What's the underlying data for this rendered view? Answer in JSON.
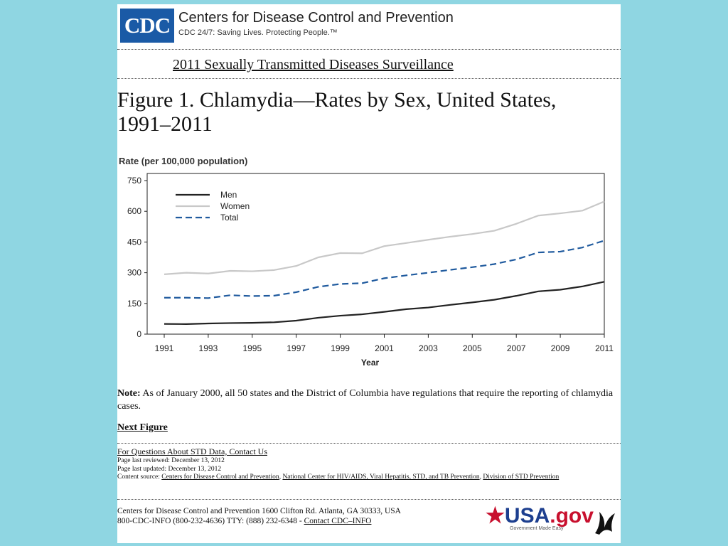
{
  "header": {
    "logo": "CDC",
    "org": "Centers for Disease Control and Prevention",
    "tagline": "CDC 24/7: Saving Lives. Protecting People.™"
  },
  "surveillance_title": "2011 Sexually Transmitted Diseases Surveillance",
  "figure_title": "Figure 1. Chlamydia—Rates by Sex, United States, 1991–2011",
  "chart_data": {
    "type": "line",
    "title": "Figure 1. Chlamydia—Rates by Sex, United States, 1991–2011",
    "ylabel": "Rate (per 100,000 population)",
    "xlabel": "Year",
    "ylim": [
      0,
      750
    ],
    "yticks": [
      0,
      150,
      300,
      450,
      600,
      750
    ],
    "xticks": [
      1991,
      1993,
      1995,
      1997,
      1999,
      2001,
      2003,
      2005,
      2007,
      2009,
      2011
    ],
    "x": [
      1991,
      1992,
      1993,
      1994,
      1995,
      1996,
      1997,
      1998,
      1999,
      2000,
      2001,
      2002,
      2003,
      2004,
      2005,
      2006,
      2007,
      2008,
      2009,
      2010,
      2011
    ],
    "legend_position": "top-left",
    "series": [
      {
        "name": "Men",
        "color": "#222222",
        "dash": "solid",
        "values": [
          50,
          49,
          52,
          54,
          55,
          58,
          66,
          80,
          90,
          97,
          109,
          122,
          130,
          143,
          155,
          168,
          187,
          209,
          217,
          233,
          256
        ]
      },
      {
        "name": "Women",
        "color": "#c8c8c8",
        "dash": "solid",
        "values": [
          292,
          300,
          296,
          309,
          307,
          313,
          333,
          375,
          396,
          395,
          430,
          445,
          461,
          476,
          489,
          505,
          539,
          579,
          590,
          603,
          648
        ]
      },
      {
        "name": "Total",
        "color": "#1f5a9e",
        "dash": "dashed",
        "values": [
          178,
          178,
          176,
          190,
          186,
          188,
          205,
          231,
          245,
          249,
          273,
          287,
          300,
          314,
          327,
          342,
          365,
          399,
          403,
          423,
          457
        ]
      }
    ]
  },
  "note_label": "Note:",
  "note_text": "As of January 2000, all 50 states and the District of Columbia have regulations that require the reporting of chlamydia cases.",
  "next_figure": "Next Figure",
  "contact_link": "For Questions About STD Data, Contact Us",
  "meta": {
    "reviewed": "Page last reviewed: December 13, 2012",
    "updated": "Page last updated: December 13, 2012",
    "source_label": "Content source:",
    "source_link1": "Centers for Disease Control and Prevention",
    "source_link2": "National Center for HIV/AIDS, Viral Hepatitis, STD, and TB Prevention",
    "source_link3": "Division of STD Prevention"
  },
  "footer": {
    "address": "Centers for Disease Control and Prevention   1600 Clifton Rd. Atlanta, GA 30333, USA",
    "phone": "800-CDC-INFO (800-232-4636) TTY: (888) 232-6348 -",
    "contact": "Contact CDC–INFO"
  },
  "usagov": {
    "main": "USA",
    "suffix": ".gov",
    "sub": "Government Made Easy"
  }
}
